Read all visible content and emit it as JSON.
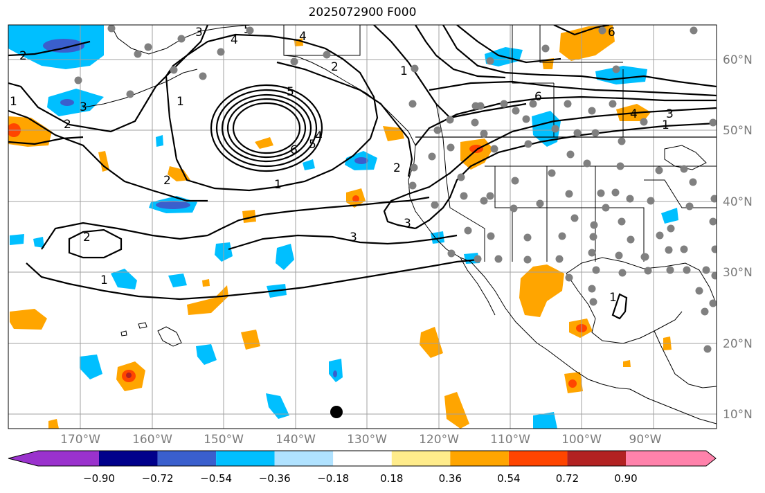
{
  "title": "2025072900 F000",
  "longitude_labels": [
    "170°W",
    "160°W",
    "150°W",
    "140°W",
    "130°W",
    "120°W",
    "110°W",
    "100°W",
    "90°W"
  ],
  "latitude_labels": [
    "60°N",
    "50°N",
    "40°N",
    "30°N",
    "20°N",
    "10°N"
  ],
  "colorbar": {
    "ticks": [
      "−0.90",
      "−0.72",
      "−0.54",
      "−0.36",
      "−0.18",
      "0.18",
      "0.36",
      "0.54",
      "0.72",
      "0.90"
    ],
    "colors": [
      "#9a32cd",
      "#00008b",
      "#3a5fcd",
      "#00bfff",
      "#b0e2ff",
      "#ffffff",
      "#ffec8b",
      "#ffa500",
      "#ff4500",
      "#b22222",
      "#ff82ab"
    ]
  },
  "contour_labels": [
    "1",
    "2",
    "3",
    "4",
    "5",
    "6"
  ],
  "colors": {
    "land_outline": "#000000",
    "grid": "#a0a0a0",
    "station_dot": "#808080"
  }
}
